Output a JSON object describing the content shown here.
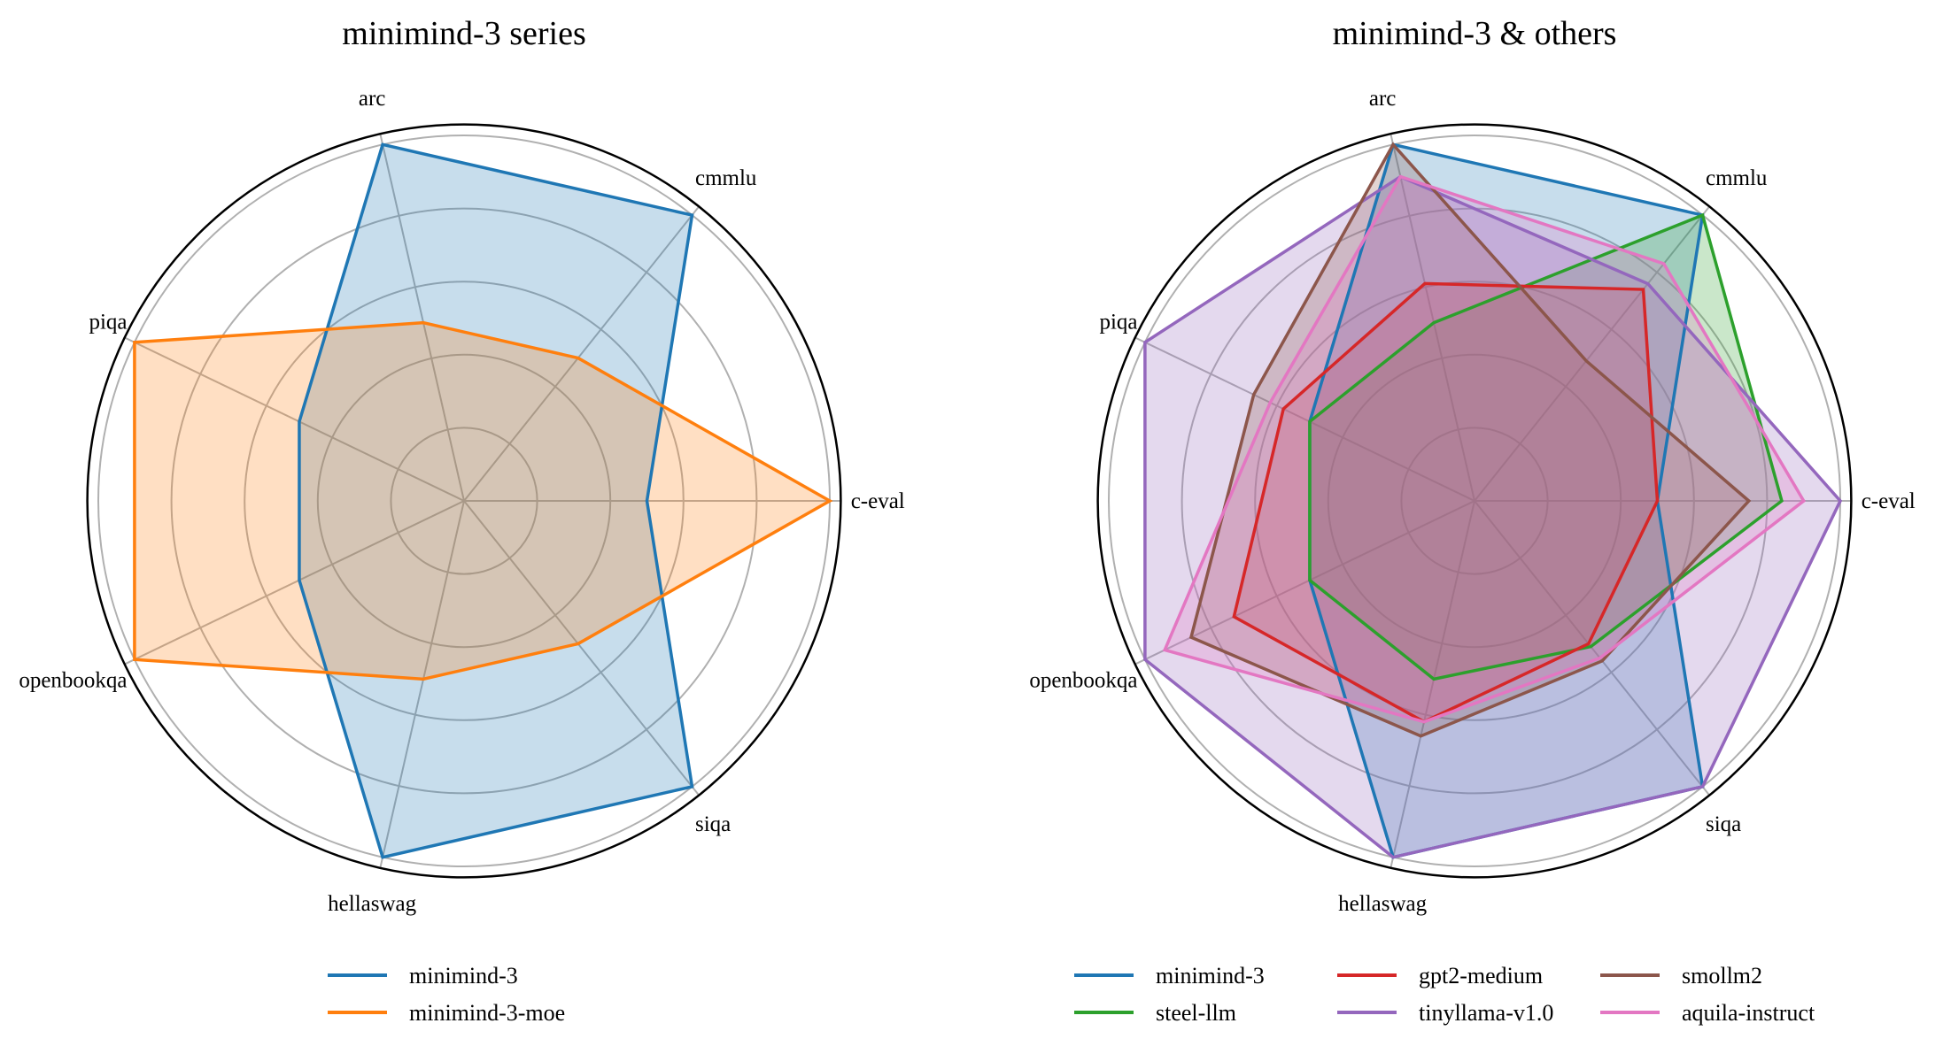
{
  "chart_data": [
    {
      "type": "radar",
      "title": "minimind-3 series",
      "categories": [
        "c-eval",
        "cmmlu",
        "arc",
        "piqa",
        "openbookqa",
        "hellaswag",
        "siqa"
      ],
      "rlim": [
        0,
        1.03
      ],
      "rgrid": [
        0.2,
        0.4,
        0.6,
        0.8,
        1.0
      ],
      "grid": true,
      "legend_placement": "bottom",
      "legend_columns": 1,
      "series": [
        {
          "name": "minimind-3",
          "color": "#1f77b4",
          "values": [
            0.5,
            1.0,
            1.0,
            0.5,
            0.5,
            1.0,
            1.0
          ]
        },
        {
          "name": "minimind-3-moe",
          "color": "#ff7f0e",
          "values": [
            1.0,
            0.5,
            0.5,
            1.0,
            1.0,
            0.5,
            0.5
          ]
        }
      ]
    },
    {
      "type": "radar",
      "title": "minimind-3 & others",
      "categories": [
        "c-eval",
        "cmmlu",
        "arc",
        "piqa",
        "openbookqa",
        "hellaswag",
        "siqa"
      ],
      "rlim": [
        0,
        1.03
      ],
      "rgrid": [
        0.2,
        0.4,
        0.6,
        0.8,
        1.0
      ],
      "grid": true,
      "legend_placement": "bottom",
      "legend_columns": 3,
      "series": [
        {
          "name": "minimind-3",
          "color": "#1f77b4",
          "values": [
            0.5,
            1.0,
            1.0,
            0.5,
            0.5,
            1.0,
            1.0
          ]
        },
        {
          "name": "steel-llm",
          "color": "#2ca02c",
          "values": [
            0.84,
            1.0,
            0.5,
            0.5,
            0.5,
            0.5,
            0.51
          ]
        },
        {
          "name": "gpt2-medium",
          "color": "#d62728",
          "values": [
            0.5,
            0.74,
            0.61,
            0.58,
            0.73,
            0.62,
            0.5
          ]
        },
        {
          "name": "tinyllama-v1.0",
          "color": "#9467bd",
          "values": [
            1.0,
            0.76,
            0.91,
            1.0,
            1.0,
            1.0,
            1.0
          ]
        },
        {
          "name": "smollm2",
          "color": "#8c564b",
          "values": [
            0.75,
            0.49,
            1.0,
            0.67,
            0.86,
            0.66,
            0.56
          ]
        },
        {
          "name": "aquila-instruct",
          "color": "#e377c2",
          "values": [
            0.9,
            0.83,
            0.91,
            0.62,
            0.94,
            0.62,
            0.55
          ]
        }
      ]
    }
  ]
}
